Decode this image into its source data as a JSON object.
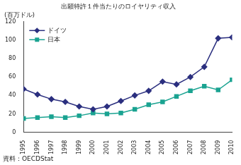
{
  "chart_data": {
    "type": "line",
    "title": "出願特許１件当たりのロイヤリティ収入",
    "y_label": "(百万ドル)",
    "source": "資料：OECDStat",
    "categories": [
      "1995",
      "1996",
      "1997",
      "1998",
      "1999",
      "2000",
      "2001",
      "2002",
      "2003",
      "2004",
      "2005",
      "2006",
      "2007",
      "2008",
      "2009",
      "2010"
    ],
    "series": [
      {
        "name": "ドイツ",
        "color": "#2b2f7f",
        "marker": "diamond",
        "values": [
          47,
          41,
          36,
          33,
          28,
          25,
          28,
          34,
          40,
          45,
          55,
          52,
          60,
          71,
          102,
          103
        ]
      },
      {
        "name": "日本",
        "color": "#1aa391",
        "marker": "square",
        "values": [
          15,
          16,
          17,
          16,
          18,
          21,
          20,
          21,
          25,
          30,
          33,
          39,
          45,
          50,
          46,
          57
        ]
      }
    ],
    "ylim": [
      0,
      120
    ],
    "yticks": [
      0,
      20,
      40,
      60,
      80,
      100,
      120
    ],
    "grid": false,
    "legend": "top-left"
  }
}
